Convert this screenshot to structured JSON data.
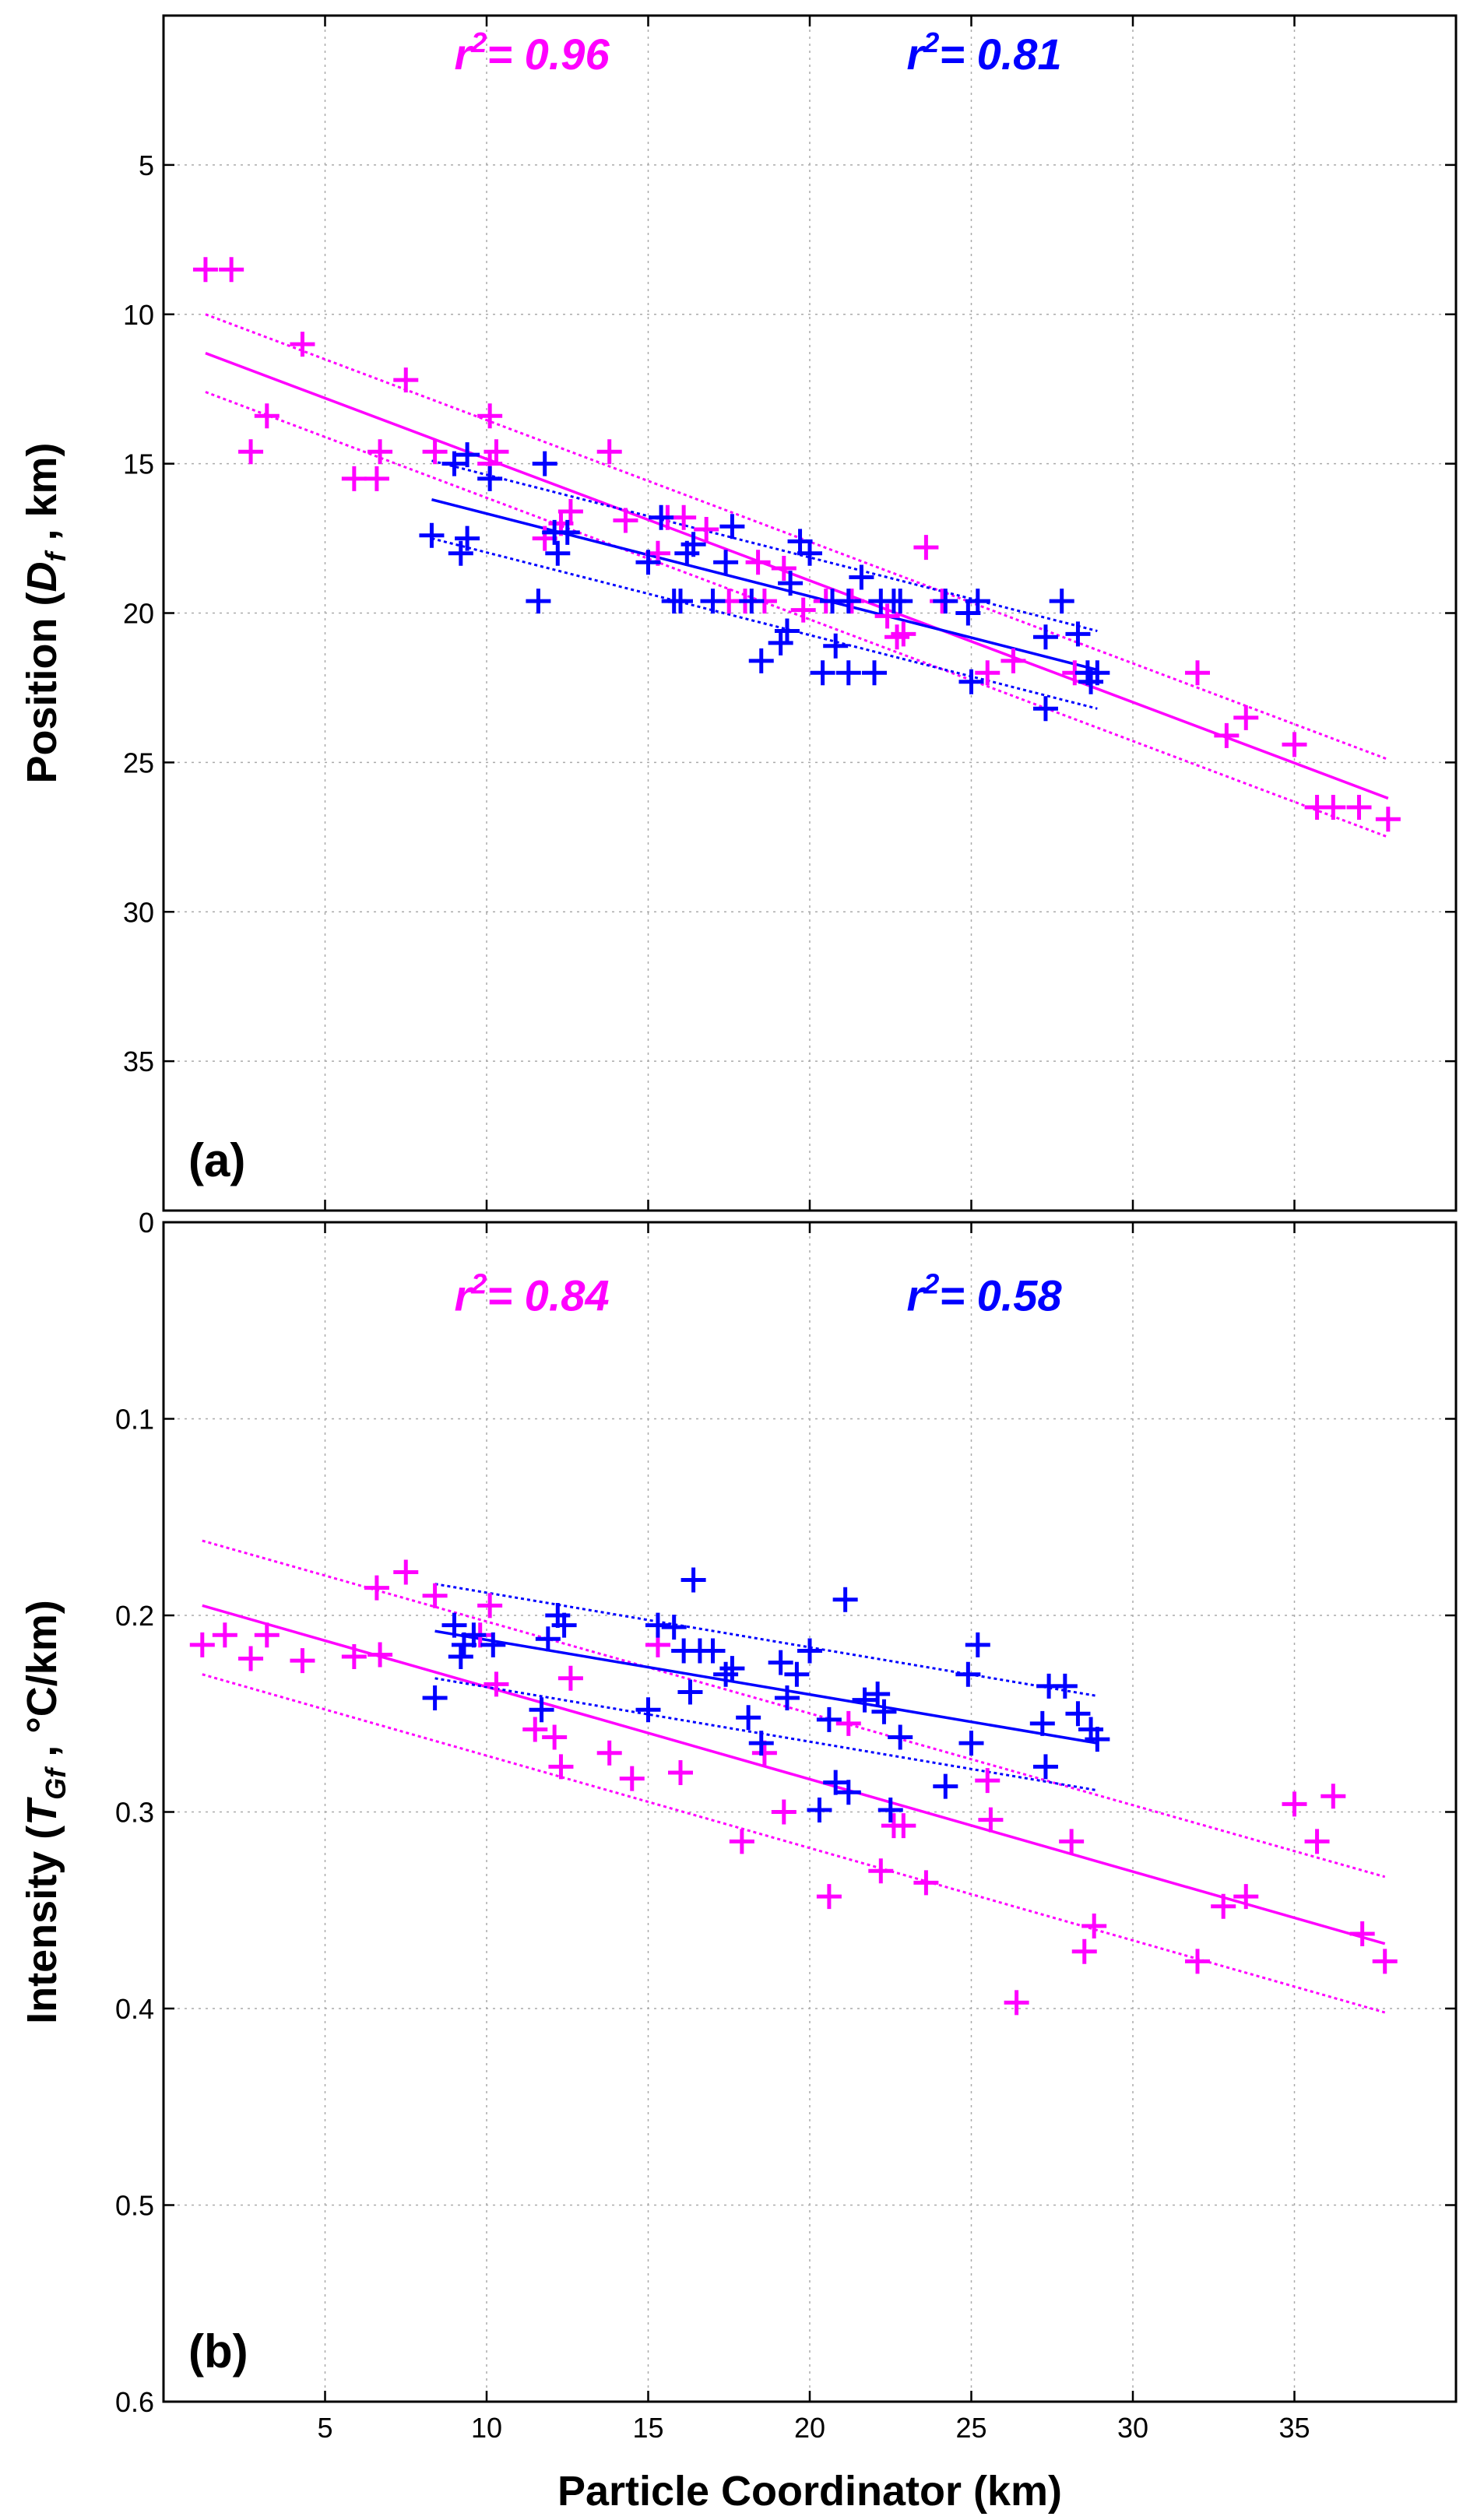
{
  "colors": {
    "magenta": "#ff00ff",
    "blue": "#0000ff"
  },
  "xlabel": "Particle Coordinator (km)",
  "chart_data": [
    {
      "type": "scatter",
      "panel": "(a)",
      "ylabel_text": "Position (",
      "ylabel_var": "D",
      "ylabel_sub": "f",
      "ylabel_tail": " , km)",
      "xlim": [
        0,
        40
      ],
      "ylim": [
        0,
        40
      ],
      "y_reversed": true,
      "xticks": [
        5,
        10,
        15,
        20,
        25,
        30,
        35
      ],
      "yticks": [
        5,
        10,
        15,
        20,
        25,
        30,
        35
      ],
      "ytick_labels": [
        "5",
        "10",
        "15",
        "20",
        "25",
        "30",
        "35"
      ],
      "grid": true,
      "annotations": [
        {
          "pre": "r",
          "sup": "2",
          "post": "= 0.96",
          "color": "magenta",
          "x": 9,
          "y": 1.8
        },
        {
          "pre": "r",
          "sup": "2",
          "post": "= 0.81",
          "color": "blue",
          "x": 23,
          "y": 1.8
        }
      ],
      "series": [
        {
          "name": "magenta",
          "color": "magenta",
          "points": [
            [
              1.3,
              8.5
            ],
            [
              2.1,
              8.5
            ],
            [
              4.3,
              11
            ],
            [
              7.5,
              12.2
            ],
            [
              3.2,
              13.4
            ],
            [
              2.7,
              14.6
            ],
            [
              5.9,
              15.5
            ],
            [
              6.6,
              15.5
            ],
            [
              6.7,
              14.6
            ],
            [
              8.4,
              14.6
            ],
            [
              10.1,
              13.4
            ],
            [
              10.3,
              14.6
            ],
            [
              12.3,
              17.0
            ],
            [
              12.6,
              16.6
            ],
            [
              13.8,
              14.6
            ],
            [
              15.3,
              18.0
            ],
            [
              15.6,
              16.8
            ],
            [
              16.1,
              16.8
            ],
            [
              16.8,
              17.2
            ],
            [
              17.5,
              19.6
            ],
            [
              18.0,
              19.6
            ],
            [
              18.6,
              19.6
            ],
            [
              19.2,
              18.5
            ],
            [
              20.5,
              19.6
            ],
            [
              21.3,
              19.6
            ],
            [
              22.7,
              20.8
            ],
            [
              22.9,
              20.7
            ],
            [
              23.6,
              17.8
            ],
            [
              25.5,
              22.0
            ],
            [
              26.3,
              21.6
            ],
            [
              28.2,
              22.0
            ],
            [
              32.0,
              22.0
            ],
            [
              32.9,
              24.1
            ],
            [
              33.5,
              23.5
            ],
            [
              35.0,
              24.4
            ],
            [
              35.7,
              26.5
            ],
            [
              36.2,
              26.5
            ],
            [
              37.0,
              26.5
            ],
            [
              37.9,
              26.9
            ],
            [
              10.1,
              15.0
            ],
            [
              11.8,
              17.5
            ],
            [
              14.3,
              16.9
            ],
            [
              18.4,
              18.3
            ],
            [
              19.8,
              19.9
            ],
            [
              24.1,
              19.6
            ],
            [
              22.4,
              20.1
            ]
          ]
        },
        {
          "name": "blue",
          "color": "blue",
          "points": [
            [
              8.3,
              17.4
            ],
            [
              9.0,
              15.0
            ],
            [
              9.4,
              14.7
            ],
            [
              9.2,
              18.0
            ],
            [
              9.4,
              17.5
            ],
            [
              10.1,
              15.5
            ],
            [
              11.6,
              19.6
            ],
            [
              11.8,
              15.0
            ],
            [
              12.1,
              17.3
            ],
            [
              12.2,
              18.0
            ],
            [
              12.5,
              17.3
            ],
            [
              15.0,
              18.3
            ],
            [
              15.4,
              16.8
            ],
            [
              15.8,
              19.6
            ],
            [
              16.0,
              19.6
            ],
            [
              16.2,
              18.0
            ],
            [
              16.4,
              17.7
            ],
            [
              17.0,
              19.6
            ],
            [
              17.4,
              18.3
            ],
            [
              17.6,
              17.1
            ],
            [
              18.2,
              19.6
            ],
            [
              18.5,
              21.6
            ],
            [
              19.1,
              21.0
            ],
            [
              19.3,
              20.6
            ],
            [
              19.4,
              19.0
            ],
            [
              19.7,
              17.6
            ],
            [
              20.0,
              18.0
            ],
            [
              20.4,
              22.0
            ],
            [
              20.7,
              19.6
            ],
            [
              20.8,
              21.1
            ],
            [
              21.2,
              19.6
            ],
            [
              21.2,
              22.0
            ],
            [
              21.6,
              18.8
            ],
            [
              22.0,
              22.0
            ],
            [
              22.2,
              19.6
            ],
            [
              22.6,
              19.6
            ],
            [
              22.8,
              19.6
            ],
            [
              24.2,
              19.6
            ],
            [
              24.9,
              20.0
            ],
            [
              25.0,
              22.3
            ],
            [
              25.2,
              19.6
            ],
            [
              27.3,
              20.8
            ],
            [
              27.3,
              23.2
            ],
            [
              27.8,
              19.6
            ],
            [
              28.3,
              20.7
            ],
            [
              28.6,
              22.0
            ],
            [
              28.7,
              22.3
            ],
            [
              28.9,
              22.0
            ]
          ]
        }
      ],
      "fits": [
        {
          "color": "magenta",
          "x": [
            1.3,
            37.9
          ],
          "y": [
            11.3,
            26.2
          ],
          "band_upper": [
            10.0,
            24.9
          ],
          "band_lower": [
            12.6,
            27.5
          ]
        },
        {
          "color": "blue",
          "x": [
            8.3,
            28.9
          ],
          "y": [
            16.2,
            21.9
          ],
          "band_upper": [
            14.9,
            20.6
          ],
          "band_lower": [
            17.5,
            23.2
          ]
        }
      ]
    },
    {
      "type": "scatter",
      "panel": "(b)",
      "ylabel_text": "Intensity (",
      "ylabel_var": "T",
      "ylabel_sub": "Gf",
      "ylabel_tail": " , °C/km)",
      "xlim": [
        0,
        40
      ],
      "ylim": [
        0,
        0.6
      ],
      "y_reversed": true,
      "xticks": [
        5,
        10,
        15,
        20,
        25,
        30,
        35
      ],
      "xtick_labels": [
        "5",
        "10",
        "15",
        "20",
        "25",
        "30",
        "35"
      ],
      "yticks": [
        0,
        0.1,
        0.2,
        0.3,
        0.4,
        0.5,
        0.6
      ],
      "ytick_labels": [
        "0",
        "0.1",
        "0.2",
        "0.3",
        "0.4",
        "0.5",
        "0.6"
      ],
      "grid": true,
      "annotations": [
        {
          "pre": "r",
          "sup": "2",
          "post": "= 0.84",
          "color": "magenta",
          "x": 9,
          "y": 0.045
        },
        {
          "pre": "r",
          "sup": "2",
          "post": "= 0.58",
          "color": "blue",
          "x": 23,
          "y": 0.045
        }
      ],
      "series": [
        {
          "name": "magenta",
          "color": "magenta",
          "points": [
            [
              1.2,
              0.215
            ],
            [
              1.9,
              0.21
            ],
            [
              2.7,
              0.222
            ],
            [
              3.2,
              0.21
            ],
            [
              4.3,
              0.223
            ],
            [
              5.9,
              0.221
            ],
            [
              6.6,
              0.186
            ],
            [
              6.7,
              0.22
            ],
            [
              7.5,
              0.178
            ],
            [
              8.4,
              0.19
            ],
            [
              9.8,
              0.21
            ],
            [
              10.1,
              0.195
            ],
            [
              10.3,
              0.235
            ],
            [
              11.5,
              0.258
            ],
            [
              12.1,
              0.262
            ],
            [
              12.3,
              0.277
            ],
            [
              12.6,
              0.232
            ],
            [
              13.8,
              0.27
            ],
            [
              14.5,
              0.283
            ],
            [
              15.3,
              0.215
            ],
            [
              16.0,
              0.28
            ],
            [
              17.9,
              0.315
            ],
            [
              18.6,
              0.27
            ],
            [
              19.2,
              0.3
            ],
            [
              20.6,
              0.343
            ],
            [
              21.2,
              0.255
            ],
            [
              22.2,
              0.33
            ],
            [
              22.6,
              0.307
            ],
            [
              22.9,
              0.307
            ],
            [
              23.6,
              0.336
            ],
            [
              25.5,
              0.284
            ],
            [
              25.6,
              0.304
            ],
            [
              26.4,
              0.397
            ],
            [
              28.1,
              0.315
            ],
            [
              28.5,
              0.371
            ],
            [
              28.8,
              0.358
            ],
            [
              32.0,
              0.376
            ],
            [
              32.8,
              0.348
            ],
            [
              33.5,
              0.343
            ],
            [
              35.0,
              0.296
            ],
            [
              35.7,
              0.315
            ],
            [
              36.2,
              0.292
            ],
            [
              37.1,
              0.362
            ],
            [
              37.8,
              0.376
            ]
          ]
        },
        {
          "name": "blue",
          "color": "blue",
          "points": [
            [
              8.4,
              0.242
            ],
            [
              9.0,
              0.205
            ],
            [
              9.2,
              0.221
            ],
            [
              9.3,
              0.215
            ],
            [
              9.6,
              0.21
            ],
            [
              10.2,
              0.215
            ],
            [
              11.7,
              0.248
            ],
            [
              11.9,
              0.212
            ],
            [
              12.2,
              0.2
            ],
            [
              12.4,
              0.205
            ],
            [
              15.0,
              0.248
            ],
            [
              15.3,
              0.205
            ],
            [
              15.8,
              0.206
            ],
            [
              16.1,
              0.218
            ],
            [
              16.3,
              0.239
            ],
            [
              16.4,
              0.182
            ],
            [
              16.6,
              0.218
            ],
            [
              17.0,
              0.218
            ],
            [
              17.4,
              0.23
            ],
            [
              17.6,
              0.227
            ],
            [
              18.1,
              0.252
            ],
            [
              18.5,
              0.265
            ],
            [
              19.1,
              0.224
            ],
            [
              19.3,
              0.242
            ],
            [
              19.6,
              0.23
            ],
            [
              20.0,
              0.218
            ],
            [
              20.3,
              0.299
            ],
            [
              20.6,
              0.253
            ],
            [
              20.8,
              0.285
            ],
            [
              21.1,
              0.192
            ],
            [
              21.2,
              0.29
            ],
            [
              21.7,
              0.243
            ],
            [
              22.1,
              0.24
            ],
            [
              22.3,
              0.249
            ],
            [
              22.5,
              0.299
            ],
            [
              22.8,
              0.262
            ],
            [
              24.2,
              0.287
            ],
            [
              24.9,
              0.23
            ],
            [
              25.0,
              0.265
            ],
            [
              25.2,
              0.215
            ],
            [
              27.2,
              0.255
            ],
            [
              27.3,
              0.277
            ],
            [
              27.4,
              0.236
            ],
            [
              27.9,
              0.236
            ],
            [
              28.3,
              0.25
            ],
            [
              28.7,
              0.258
            ],
            [
              28.9,
              0.263
            ]
          ]
        }
      ],
      "fits": [
        {
          "color": "magenta",
          "x": [
            1.2,
            37.8
          ],
          "y": [
            0.195,
            0.367
          ],
          "band_upper": [
            0.162,
            0.333
          ],
          "band_lower": [
            0.23,
            0.402
          ]
        },
        {
          "color": "blue",
          "x": [
            8.4,
            28.9
          ],
          "y": [
            0.208,
            0.265
          ],
          "band_upper": [
            0.184,
            0.241
          ],
          "band_lower": [
            0.232,
            0.289
          ]
        }
      ]
    }
  ]
}
